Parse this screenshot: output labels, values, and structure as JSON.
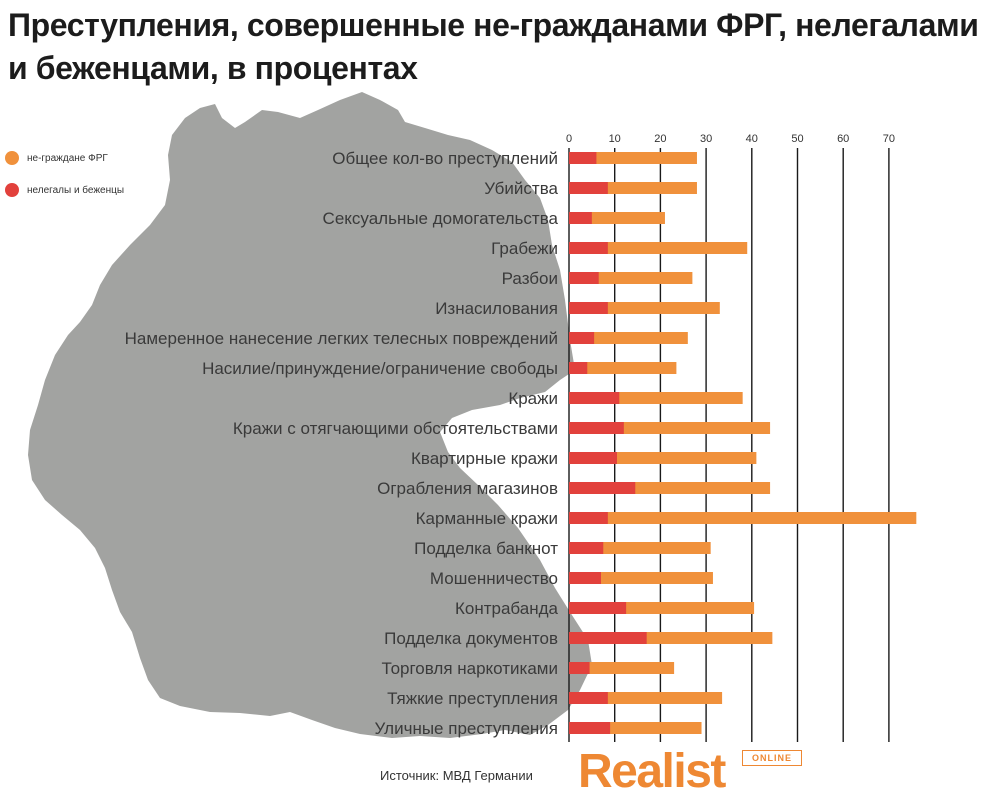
{
  "title": "Преступления, совершенные не-гражданами ФРГ, нелегалами и беженцами, в процентах",
  "legend": [
    {
      "label": "не-граждане ФРГ",
      "color": "#f0913c"
    },
    {
      "label": "нелегалы и беженцы",
      "color": "#e2413c"
    }
  ],
  "source": "Источник: МВД Германии",
  "logo": {
    "name": "Realist",
    "badge": "ONLINE"
  },
  "chart_data": {
    "type": "bar",
    "orientation": "horizontal",
    "stacked": "overlay",
    "title": "Преступления, совершенные не-гражданами ФРГ, нелегалами и беженцами, в процентах",
    "xticks": [
      0,
      10,
      20,
      30,
      40,
      50,
      60,
      70
    ],
    "xlim": [
      0,
      77
    ],
    "grid": true,
    "categories": [
      "Общее кол-во преступлений",
      "Убийства",
      "Сексуальные домогательства",
      "Грабежи",
      "Разбои",
      "Изнасилования",
      "Намеренное нанесение легких телесных повреждений",
      "Насилие/принуждение/ограничение свободы",
      "Кражи",
      "Кражи с отягчающими обстоятельствами",
      "Квартирные кражи",
      "Ограбления магазинов",
      "Карманные кражи",
      "Подделка банкнот",
      "Мошенничество",
      "Контрабанда",
      "Подделка документов",
      "Торговля наркотиками",
      "Тяжкие преступления",
      "Уличные преступления"
    ],
    "series": [
      {
        "name": "не-граждане ФРГ",
        "color": "#f0913c",
        "values": [
          28,
          28,
          21,
          39,
          27,
          33,
          26,
          23.5,
          38,
          44,
          41,
          44,
          76,
          31,
          31.5,
          40.5,
          44.5,
          23,
          33.5,
          29
        ]
      },
      {
        "name": "нелегалы и беженцы",
        "color": "#e2413c",
        "values": [
          6,
          8.5,
          5,
          8.5,
          6.5,
          8.5,
          5.5,
          4,
          11,
          12,
          10.5,
          14.5,
          8.5,
          7.5,
          7,
          12.5,
          17,
          4.5,
          8.5,
          9
        ]
      }
    ]
  }
}
